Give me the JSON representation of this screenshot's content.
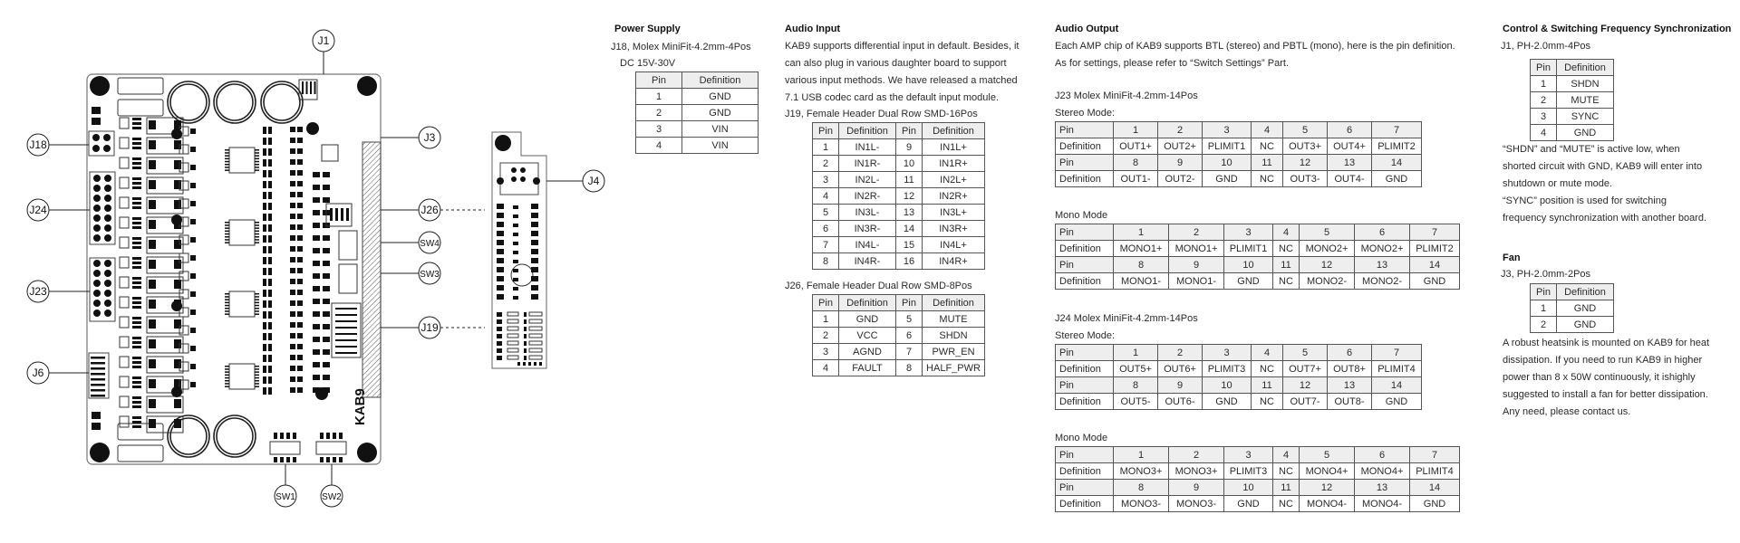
{
  "board": {
    "name": "KAB9",
    "callouts": {
      "j1": "J1",
      "j18": "J18",
      "j24": "J24",
      "j23": "J23",
      "j6": "J6",
      "j3": "J3",
      "j26": "J26",
      "sw4": "SW4",
      "sw3": "SW3",
      "j19": "J19",
      "j4": "J4",
      "sw1": "SW1",
      "sw2": "SW2"
    }
  },
  "power_supply": {
    "title": "Power Supply",
    "connector": "J18, Molex MiniFit-4.2mm-4Pos",
    "voltage": "DC 15V-30V",
    "table": {
      "rows": [
        [
          "Pin",
          "Definition"
        ],
        [
          "1",
          "GND"
        ],
        [
          "2",
          "GND"
        ],
        [
          "3",
          "VIN"
        ],
        [
          "4",
          "VIN"
        ]
      ]
    }
  },
  "audio_input": {
    "title": "Audio Input",
    "lines": [
      "KAB9 supports differential input in default. Besides, it",
      "can  also  plug in   various daughter board to    support",
      "various input methods.  We have released a matched",
      "7.1 USB codec card as the default input module."
    ],
    "j19": {
      "caption": "J19, Female Header Dual Row SMD-16Pos",
      "rows": [
        [
          "Pin",
          "Definition",
          "Pin",
          "Definition"
        ],
        [
          "1",
          "IN1L-",
          "9",
          "IN1L+"
        ],
        [
          "2",
          "IN1R-",
          "10",
          "IN1R+"
        ],
        [
          "3",
          "IN2L-",
          "11",
          "IN2L+"
        ],
        [
          "4",
          "IN2R-",
          "12",
          "IN2R+"
        ],
        [
          "5",
          "IN3L-",
          "13",
          "IN3L+"
        ],
        [
          "6",
          "IN3R-",
          "14",
          "IN3R+"
        ],
        [
          "7",
          "IN4L-",
          "15",
          "IN4L+"
        ],
        [
          "8",
          "IN4R-",
          "16",
          "IN4R+"
        ]
      ]
    },
    "j26": {
      "caption": "J26, Female Header Dual Row SMD-8Pos",
      "rows": [
        [
          "Pin",
          "Definition",
          "Pin",
          "Definition"
        ],
        [
          "1",
          "GND",
          "5",
          "MUTE"
        ],
        [
          "2",
          "VCC",
          "6",
          "SHDN"
        ],
        [
          "3",
          "AGND",
          "7",
          "PWR_EN"
        ],
        [
          "4",
          "FAULT",
          "8",
          "HALF_PWR"
        ]
      ]
    }
  },
  "audio_output": {
    "title": "Audio Output",
    "lines": [
      "Each AMP chip of KAB9 supports BTL (stereo) and PBTL (mono), here is the pin definition.",
      "As for settings, please refer to “Switch Settings” Part."
    ],
    "j23": {
      "caption": "J23 Molex MiniFit-4.2mm-14Pos",
      "stereo": {
        "label": "Stereo Mode:",
        "rows": [
          [
            "Pin",
            "1",
            "2",
            "3",
            "4",
            "5",
            "6",
            "7"
          ],
          [
            "Definition",
            "OUT1+",
            "OUT2+",
            "PLIMIT1",
            "NC",
            "OUT3+",
            "OUT4+",
            "PLIMIT2"
          ],
          [
            "Pin",
            "8",
            "9",
            "10",
            "11",
            "12",
            "13",
            "14"
          ],
          [
            "Definition",
            "OUT1-",
            "OUT2-",
            "GND",
            "NC",
            "OUT3-",
            "OUT4-",
            "GND"
          ]
        ]
      },
      "mono": {
        "label": "Mono Mode",
        "rows": [
          [
            "Pin",
            "1",
            "2",
            "3",
            "4",
            "5",
            "6",
            "7"
          ],
          [
            "Definition",
            "MONO1+",
            "MONO1+",
            "PLIMIT1",
            "NC",
            "MONO2+",
            "MONO2+",
            "PLIMIT2"
          ],
          [
            "Pin",
            "8",
            "9",
            "10",
            "11",
            "12",
            "13",
            "14"
          ],
          [
            "Definition",
            "MONO1-",
            "MONO1-",
            "GND",
            "NC",
            "MONO2-",
            "MONO2-",
            "GND"
          ]
        ]
      }
    },
    "j24": {
      "caption": "J24 Molex MiniFit-4.2mm-14Pos",
      "stereo": {
        "label": "Stereo Mode:",
        "rows": [
          [
            "Pin",
            "1",
            "2",
            "3",
            "4",
            "5",
            "6",
            "7"
          ],
          [
            "Definition",
            "OUT5+",
            "OUT6+",
            "PLIMIT3",
            "NC",
            "OUT7+",
            "OUT8+",
            "PLIMIT4"
          ],
          [
            "Pin",
            "8",
            "9",
            "10",
            "11",
            "12",
            "13",
            "14"
          ],
          [
            "Definition",
            "OUT5-",
            "OUT6-",
            "GND",
            "NC",
            "OUT7-",
            "OUT8-",
            "GND"
          ]
        ]
      },
      "mono": {
        "label": "Mono Mode",
        "rows": [
          [
            "Pin",
            "1",
            "2",
            "3",
            "4",
            "5",
            "6",
            "7"
          ],
          [
            "Definition",
            "MONO3+",
            "MONO3+",
            "PLIMIT3",
            "NC",
            "MONO4+",
            "MONO4+",
            "PLIMIT4"
          ],
          [
            "Pin",
            "8",
            "9",
            "10",
            "11",
            "12",
            "13",
            "14"
          ],
          [
            "Definition",
            "MONO3-",
            "MONO3-",
            "GND",
            "NC",
            "MONO4-",
            "MONO4-",
            "GND"
          ]
        ]
      }
    }
  },
  "control": {
    "title": "Control & Switching Frequency Synchronization",
    "connector": "J1, PH-2.0mm-4Pos",
    "table": {
      "rows": [
        [
          "Pin",
          "Definition"
        ],
        [
          "1",
          "SHDN"
        ],
        [
          "2",
          "MUTE"
        ],
        [
          "3",
          "SYNC"
        ],
        [
          "4",
          "GND"
        ]
      ]
    },
    "lines": [
      "“SHDN” and “MUTE” is active low, when",
      "shorted circuit with GND, KAB9 will enter into",
      "shutdown or mute mode.",
      "“SYNC” position is used for switching",
      "frequency synchronization with another board."
    ]
  },
  "fan": {
    "title": "Fan",
    "connector": "J3, PH-2.0mm-2Pos",
    "table": {
      "rows": [
        [
          "Pin",
          "Definition"
        ],
        [
          "1",
          "GND"
        ],
        [
          "2",
          "GND"
        ]
      ]
    },
    "lines": [
      "A robust heatsink is mounted on KAB9 for heat",
      "dissipation. If you need to run KAB9 in higher",
      "power than 8 x 50W continuously, it ishighly",
      "suggested to install a fan for better dissipation.",
      "Any need, please contact us."
    ]
  }
}
